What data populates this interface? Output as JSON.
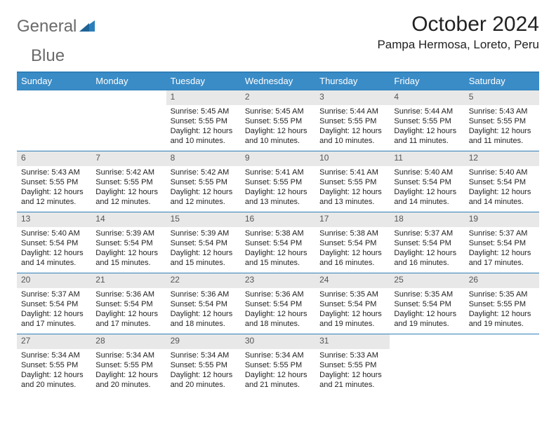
{
  "logo": {
    "text1": "General",
    "text2": "Blue"
  },
  "title": "October 2024",
  "location": "Pampa Hermosa, Loreto, Peru",
  "colors": {
    "header_bg": "#3a8cc7",
    "border": "#2f7fb8",
    "datebar_bg": "#e8e8e8",
    "text": "#222222",
    "logo_gray": "#6a6a6a",
    "logo_blue": "#2a7fbb"
  },
  "days_of_week": [
    "Sunday",
    "Monday",
    "Tuesday",
    "Wednesday",
    "Thursday",
    "Friday",
    "Saturday"
  ],
  "weeks": [
    [
      null,
      null,
      {
        "date": "1",
        "sunrise": "Sunrise: 5:45 AM",
        "sunset": "Sunset: 5:55 PM",
        "daylight": "Daylight: 12 hours and 10 minutes."
      },
      {
        "date": "2",
        "sunrise": "Sunrise: 5:45 AM",
        "sunset": "Sunset: 5:55 PM",
        "daylight": "Daylight: 12 hours and 10 minutes."
      },
      {
        "date": "3",
        "sunrise": "Sunrise: 5:44 AM",
        "sunset": "Sunset: 5:55 PM",
        "daylight": "Daylight: 12 hours and 10 minutes."
      },
      {
        "date": "4",
        "sunrise": "Sunrise: 5:44 AM",
        "sunset": "Sunset: 5:55 PM",
        "daylight": "Daylight: 12 hours and 11 minutes."
      },
      {
        "date": "5",
        "sunrise": "Sunrise: 5:43 AM",
        "sunset": "Sunset: 5:55 PM",
        "daylight": "Daylight: 12 hours and 11 minutes."
      }
    ],
    [
      {
        "date": "6",
        "sunrise": "Sunrise: 5:43 AM",
        "sunset": "Sunset: 5:55 PM",
        "daylight": "Daylight: 12 hours and 12 minutes."
      },
      {
        "date": "7",
        "sunrise": "Sunrise: 5:42 AM",
        "sunset": "Sunset: 5:55 PM",
        "daylight": "Daylight: 12 hours and 12 minutes."
      },
      {
        "date": "8",
        "sunrise": "Sunrise: 5:42 AM",
        "sunset": "Sunset: 5:55 PM",
        "daylight": "Daylight: 12 hours and 12 minutes."
      },
      {
        "date": "9",
        "sunrise": "Sunrise: 5:41 AM",
        "sunset": "Sunset: 5:55 PM",
        "daylight": "Daylight: 12 hours and 13 minutes."
      },
      {
        "date": "10",
        "sunrise": "Sunrise: 5:41 AM",
        "sunset": "Sunset: 5:55 PM",
        "daylight": "Daylight: 12 hours and 13 minutes."
      },
      {
        "date": "11",
        "sunrise": "Sunrise: 5:40 AM",
        "sunset": "Sunset: 5:54 PM",
        "daylight": "Daylight: 12 hours and 14 minutes."
      },
      {
        "date": "12",
        "sunrise": "Sunrise: 5:40 AM",
        "sunset": "Sunset: 5:54 PM",
        "daylight": "Daylight: 12 hours and 14 minutes."
      }
    ],
    [
      {
        "date": "13",
        "sunrise": "Sunrise: 5:40 AM",
        "sunset": "Sunset: 5:54 PM",
        "daylight": "Daylight: 12 hours and 14 minutes."
      },
      {
        "date": "14",
        "sunrise": "Sunrise: 5:39 AM",
        "sunset": "Sunset: 5:54 PM",
        "daylight": "Daylight: 12 hours and 15 minutes."
      },
      {
        "date": "15",
        "sunrise": "Sunrise: 5:39 AM",
        "sunset": "Sunset: 5:54 PM",
        "daylight": "Daylight: 12 hours and 15 minutes."
      },
      {
        "date": "16",
        "sunrise": "Sunrise: 5:38 AM",
        "sunset": "Sunset: 5:54 PM",
        "daylight": "Daylight: 12 hours and 15 minutes."
      },
      {
        "date": "17",
        "sunrise": "Sunrise: 5:38 AM",
        "sunset": "Sunset: 5:54 PM",
        "daylight": "Daylight: 12 hours and 16 minutes."
      },
      {
        "date": "18",
        "sunrise": "Sunrise: 5:37 AM",
        "sunset": "Sunset: 5:54 PM",
        "daylight": "Daylight: 12 hours and 16 minutes."
      },
      {
        "date": "19",
        "sunrise": "Sunrise: 5:37 AM",
        "sunset": "Sunset: 5:54 PM",
        "daylight": "Daylight: 12 hours and 17 minutes."
      }
    ],
    [
      {
        "date": "20",
        "sunrise": "Sunrise: 5:37 AM",
        "sunset": "Sunset: 5:54 PM",
        "daylight": "Daylight: 12 hours and 17 minutes."
      },
      {
        "date": "21",
        "sunrise": "Sunrise: 5:36 AM",
        "sunset": "Sunset: 5:54 PM",
        "daylight": "Daylight: 12 hours and 17 minutes."
      },
      {
        "date": "22",
        "sunrise": "Sunrise: 5:36 AM",
        "sunset": "Sunset: 5:54 PM",
        "daylight": "Daylight: 12 hours and 18 minutes."
      },
      {
        "date": "23",
        "sunrise": "Sunrise: 5:36 AM",
        "sunset": "Sunset: 5:54 PM",
        "daylight": "Daylight: 12 hours and 18 minutes."
      },
      {
        "date": "24",
        "sunrise": "Sunrise: 5:35 AM",
        "sunset": "Sunset: 5:54 PM",
        "daylight": "Daylight: 12 hours and 19 minutes."
      },
      {
        "date": "25",
        "sunrise": "Sunrise: 5:35 AM",
        "sunset": "Sunset: 5:54 PM",
        "daylight": "Daylight: 12 hours and 19 minutes."
      },
      {
        "date": "26",
        "sunrise": "Sunrise: 5:35 AM",
        "sunset": "Sunset: 5:55 PM",
        "daylight": "Daylight: 12 hours and 19 minutes."
      }
    ],
    [
      {
        "date": "27",
        "sunrise": "Sunrise: 5:34 AM",
        "sunset": "Sunset: 5:55 PM",
        "daylight": "Daylight: 12 hours and 20 minutes."
      },
      {
        "date": "28",
        "sunrise": "Sunrise: 5:34 AM",
        "sunset": "Sunset: 5:55 PM",
        "daylight": "Daylight: 12 hours and 20 minutes."
      },
      {
        "date": "29",
        "sunrise": "Sunrise: 5:34 AM",
        "sunset": "Sunset: 5:55 PM",
        "daylight": "Daylight: 12 hours and 20 minutes."
      },
      {
        "date": "30",
        "sunrise": "Sunrise: 5:34 AM",
        "sunset": "Sunset: 5:55 PM",
        "daylight": "Daylight: 12 hours and 21 minutes."
      },
      {
        "date": "31",
        "sunrise": "Sunrise: 5:33 AM",
        "sunset": "Sunset: 5:55 PM",
        "daylight": "Daylight: 12 hours and 21 minutes."
      },
      null,
      null
    ]
  ]
}
